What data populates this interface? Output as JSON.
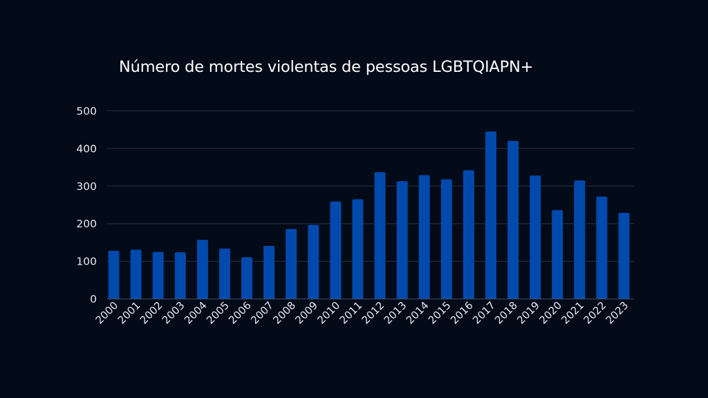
{
  "chart_data": {
    "type": "bar",
    "title": "Número de mortes violentas de pessoas LGBTQIAPN+",
    "xlabel": "",
    "ylabel": "",
    "ylim": [
      0,
      500
    ],
    "yticks": [
      0,
      100,
      200,
      300,
      400,
      500
    ],
    "grid": true,
    "legend": "none",
    "categories": [
      "2000",
      "2001",
      "2002",
      "2003",
      "2004",
      "2005",
      "2006",
      "2007",
      "2008",
      "2009",
      "2010",
      "2011",
      "2012",
      "2013",
      "2014",
      "2015",
      "2016",
      "2017",
      "2018",
      "2019",
      "2020",
      "2021",
      "2022",
      "2023"
    ],
    "values": [
      128,
      131,
      125,
      124,
      157,
      134,
      111,
      141,
      186,
      197,
      259,
      265,
      337,
      313,
      329,
      318,
      342,
      445,
      420,
      328,
      236,
      315,
      272,
      229
    ],
    "colors": {
      "bar": "#004aad",
      "grid": "#2a2f40",
      "axis": "#4a5060",
      "background": "#030a18",
      "text": "#e6e8ee"
    }
  }
}
